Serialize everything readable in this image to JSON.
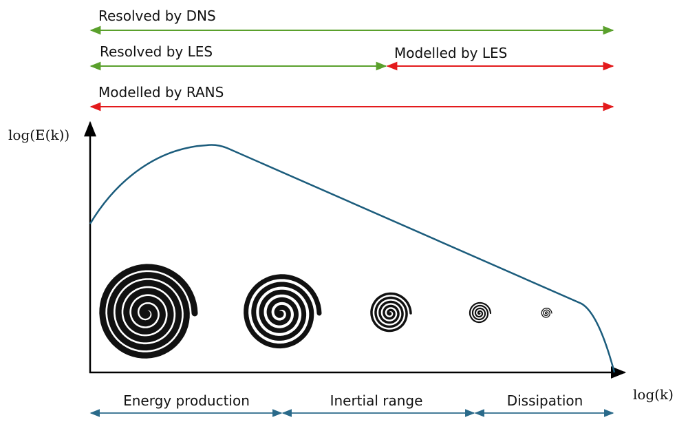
{
  "scope_labels": {
    "resolved_dns": "Resolved by DNS",
    "resolved_les": "Resolved by LES",
    "modelled_les": "Modelled by LES",
    "modelled_rans": "Modelled by RANS"
  },
  "axes": {
    "y_label": "log(E(k))",
    "x_label": "log(k)"
  },
  "ranges": [
    "Energy production",
    "Inertial range",
    "Dissipation"
  ]
}
